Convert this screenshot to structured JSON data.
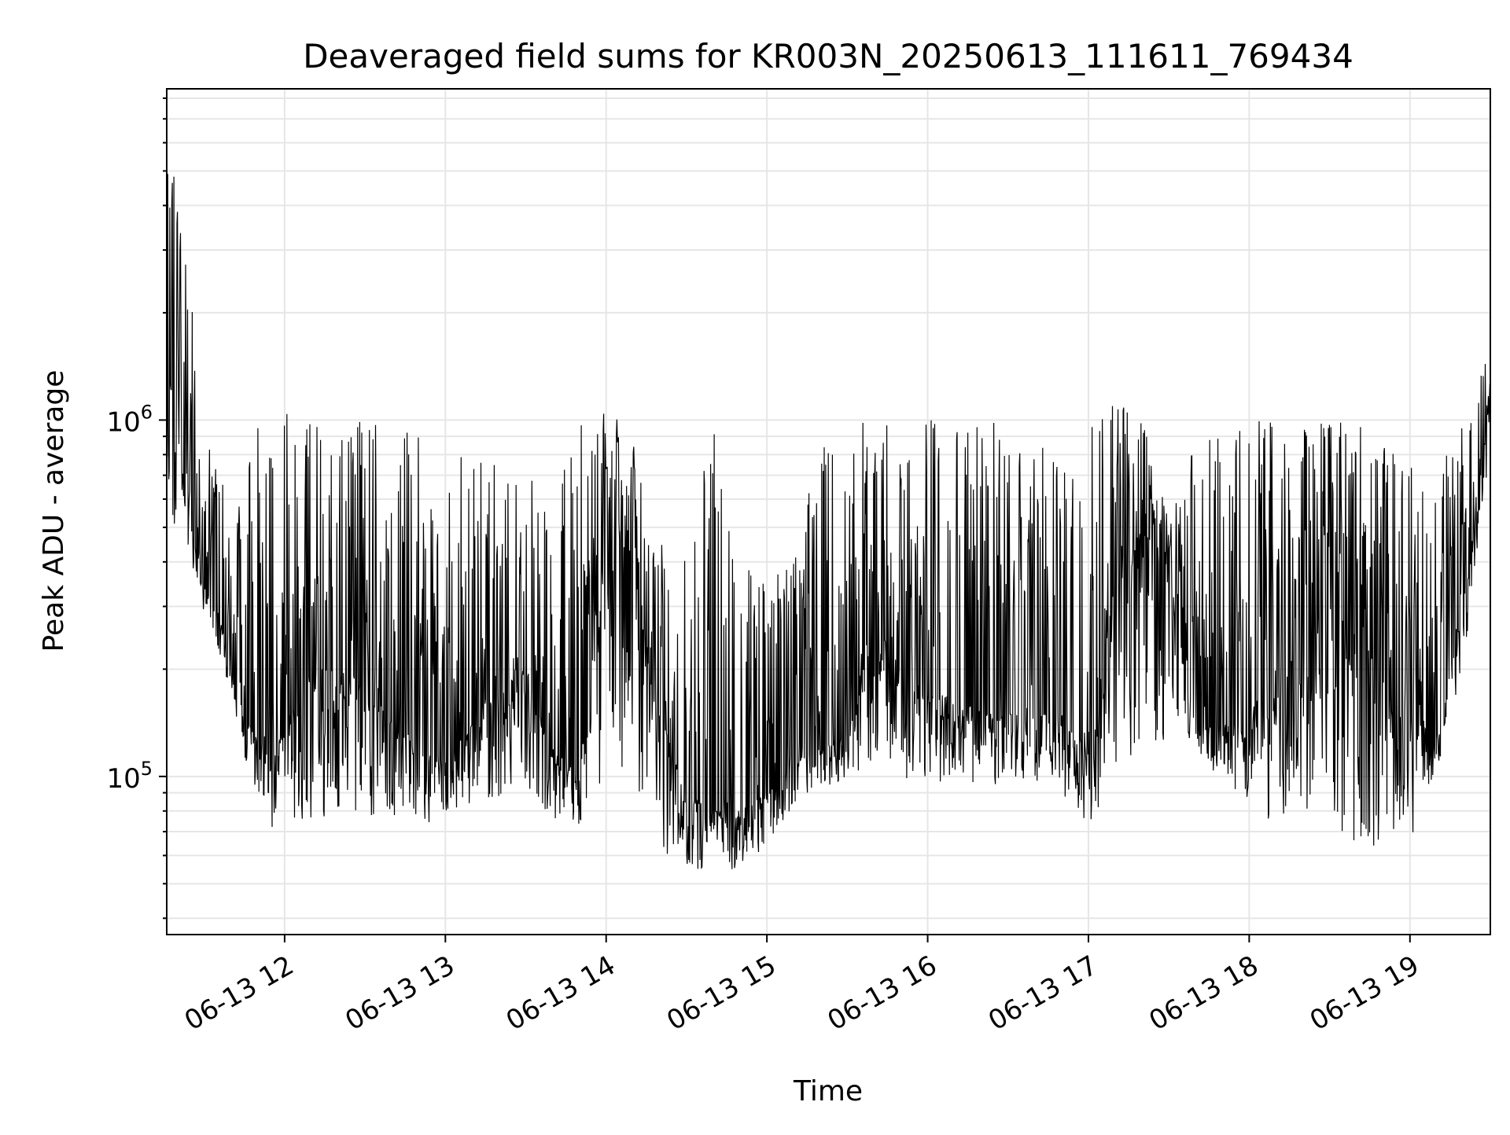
{
  "chart_data": {
    "type": "line",
    "title": "Deaveraged field sums for KR003N_20250613_111611_769434",
    "xlabel": "Time",
    "ylabel": "Peak ADU - average",
    "yscale": "log",
    "ylim": [
      36000,
      8500000
    ],
    "xlim": [
      "06-13 11:16",
      "06-13 19:30"
    ],
    "grid": true,
    "line_color": "#000000",
    "x_ticks": [
      {
        "label": "06-13 12",
        "hour": 12
      },
      {
        "label": "06-13 13",
        "hour": 13
      },
      {
        "label": "06-13 14",
        "hour": 14
      },
      {
        "label": "06-13 15",
        "hour": 15
      },
      {
        "label": "06-13 16",
        "hour": 16
      },
      {
        "label": "06-13 17",
        "hour": 17
      },
      {
        "label": "06-13 18",
        "hour": 18
      },
      {
        "label": "06-13 19",
        "hour": 19
      }
    ],
    "y_ticks": [
      {
        "base": "10",
        "exp": "5",
        "value": 100000
      },
      {
        "base": "10",
        "exp": "6",
        "value": 1000000
      }
    ],
    "series": [
      {
        "x": [
          "11:16",
          "11:20",
          "11:25",
          "11:30",
          "11:35",
          "11:40",
          "11:45",
          "11:50",
          "11:55",
          "12:00",
          "12:10",
          "12:20",
          "12:30",
          "12:40",
          "12:50",
          "13:00",
          "13:10",
          "13:20",
          "13:30",
          "13:40",
          "13:50",
          "14:00",
          "14:10",
          "14:20",
          "14:30",
          "14:40",
          "14:50",
          "15:00",
          "15:10",
          "15:20",
          "15:30",
          "15:40",
          "15:50",
          "16:00",
          "16:10",
          "16:20",
          "16:30",
          "16:40",
          "16:50",
          "17:00",
          "17:10",
          "17:20",
          "17:30",
          "17:40",
          "17:50",
          "18:00",
          "18:10",
          "18:20",
          "18:30",
          "18:40",
          "18:50",
          "19:00",
          "19:10",
          "19:20",
          "19:30"
        ],
        "low": [
          600000,
          380000,
          330000,
          280000,
          220000,
          150000,
          110000,
          85000,
          65000,
          70000,
          65000,
          70000,
          68000,
          72000,
          70000,
          72000,
          80000,
          75000,
          80000,
          72000,
          68000,
          70000,
          60000,
          55000,
          52000,
          52000,
          52000,
          62000,
          80000,
          90000,
          95000,
          95000,
          90000,
          90000,
          88000,
          88000,
          90000,
          92000,
          85000,
          70000,
          80000,
          100000,
          110000,
          120000,
          90000,
          80000,
          60000,
          55000,
          60000,
          55000,
          55000,
          60000,
          100000,
          200000,
          800000
        ],
        "high": [
          6800000,
          4500000,
          2300000,
          900000,
          750000,
          600000,
          600000,
          1100000,
          1100000,
          1050000,
          1050000,
          1050000,
          1050000,
          1000000,
          900000,
          800000,
          800000,
          780000,
          700000,
          600000,
          1050000,
          1050000,
          950000,
          450000,
          420000,
          1050000,
          400000,
          350000,
          400000,
          1000000,
          1000000,
          1000000,
          1000000,
          1000000,
          1000000,
          1000000,
          1000000,
          850000,
          1000000,
          1050000,
          1100000,
          1050000,
          520000,
          900000,
          900000,
          1000000,
          1000000,
          1000000,
          1000000,
          1000000,
          900000,
          800000,
          700000,
          1000000,
          1600000
        ],
        "typical": [
          1300000,
          1200000,
          500000,
          350000,
          300000,
          200000,
          160000,
          130000,
          110000,
          140000,
          200000,
          200000,
          180000,
          150000,
          120000,
          110000,
          140000,
          200000,
          200000,
          120000,
          100000,
          600000,
          400000,
          150000,
          90000,
          80000,
          80000,
          90000,
          110000,
          120000,
          130000,
          300000,
          200000,
          170000,
          170000,
          150000,
          150000,
          150000,
          150000,
          120000,
          350000,
          500000,
          400000,
          140000,
          140000,
          150000,
          200000,
          250000,
          300000,
          250000,
          200000,
          150000,
          130000,
          300000,
          1200000
        ]
      }
    ]
  }
}
